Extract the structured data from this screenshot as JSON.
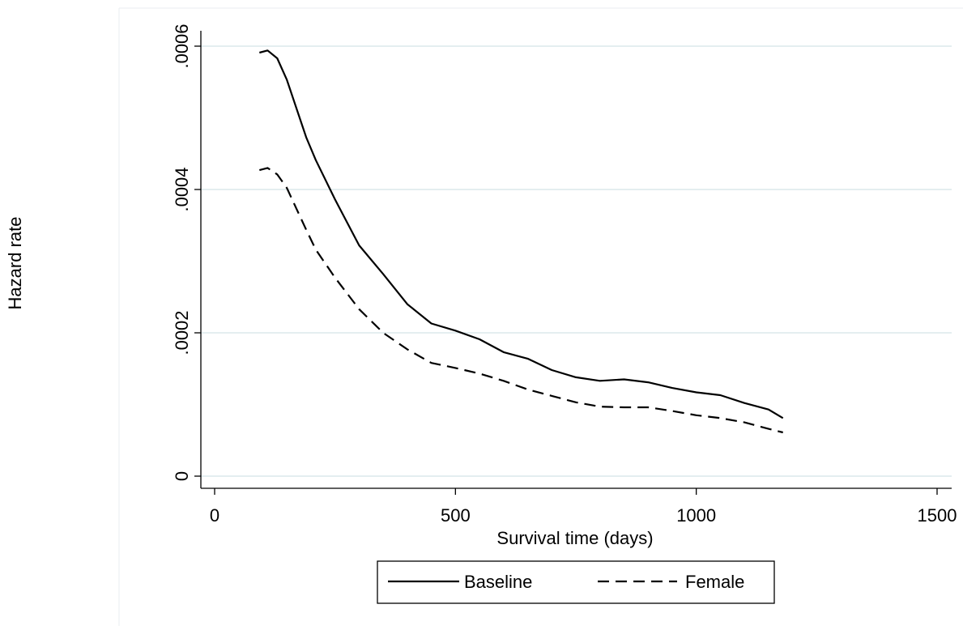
{
  "chart_data": {
    "type": "line",
    "title": "",
    "xlabel": "Survival time (days)",
    "ylabel": "Hazard rate",
    "xlim": [
      0,
      1500
    ],
    "ylim": [
      0,
      0.0006
    ],
    "xticks": [
      0,
      500,
      1000,
      1500
    ],
    "xtick_labels": [
      "0",
      "500",
      "1000",
      "1500"
    ],
    "yticks": [
      0,
      0.0002,
      0.0004,
      0.0006
    ],
    "ytick_labels": [
      "0",
      ".0002",
      ".0004",
      ".0006"
    ],
    "grid": true,
    "legend_position": "bottom",
    "series": [
      {
        "name": "Baseline",
        "style": "solid",
        "color": "#000000",
        "x": [
          93,
          110,
          130,
          150,
          170,
          190,
          210,
          250,
          300,
          350,
          400,
          450,
          500,
          550,
          600,
          650,
          700,
          750,
          800,
          850,
          900,
          950,
          1000,
          1050,
          1100,
          1150,
          1180
        ],
        "y": [
          0.000591,
          0.000594,
          0.000583,
          0.000553,
          0.000513,
          0.000473,
          0.000441,
          0.000386,
          0.000322,
          0.000282,
          0.00024,
          0.000213,
          0.000203,
          0.000191,
          0.000173,
          0.000164,
          0.000148,
          0.000138,
          0.000133,
          0.000135,
          0.000131,
          0.000123,
          0.000117,
          0.000113,
          0.000102,
          9.3e-05,
          8.1e-05
        ]
      },
      {
        "name": "Female",
        "style": "dashed",
        "color": "#000000",
        "x": [
          93,
          110,
          130,
          150,
          170,
          190,
          210,
          250,
          300,
          350,
          400,
          450,
          500,
          550,
          600,
          650,
          700,
          750,
          800,
          850,
          900,
          950,
          1000,
          1050,
          1100,
          1150,
          1180
        ],
        "y": [
          0.000427,
          0.00043,
          0.000421,
          0.000402,
          0.000373,
          0.000344,
          0.000316,
          0.000277,
          0.000233,
          0.0002,
          0.000177,
          0.000158,
          0.000151,
          0.000143,
          0.000133,
          0.000121,
          0.000112,
          0.000103,
          9.7e-05,
          9.6e-05,
          9.6e-05,
          9.1e-05,
          8.5e-05,
          8.1e-05,
          7.5e-05,
          6.6e-05,
          6.1e-05
        ]
      }
    ]
  }
}
